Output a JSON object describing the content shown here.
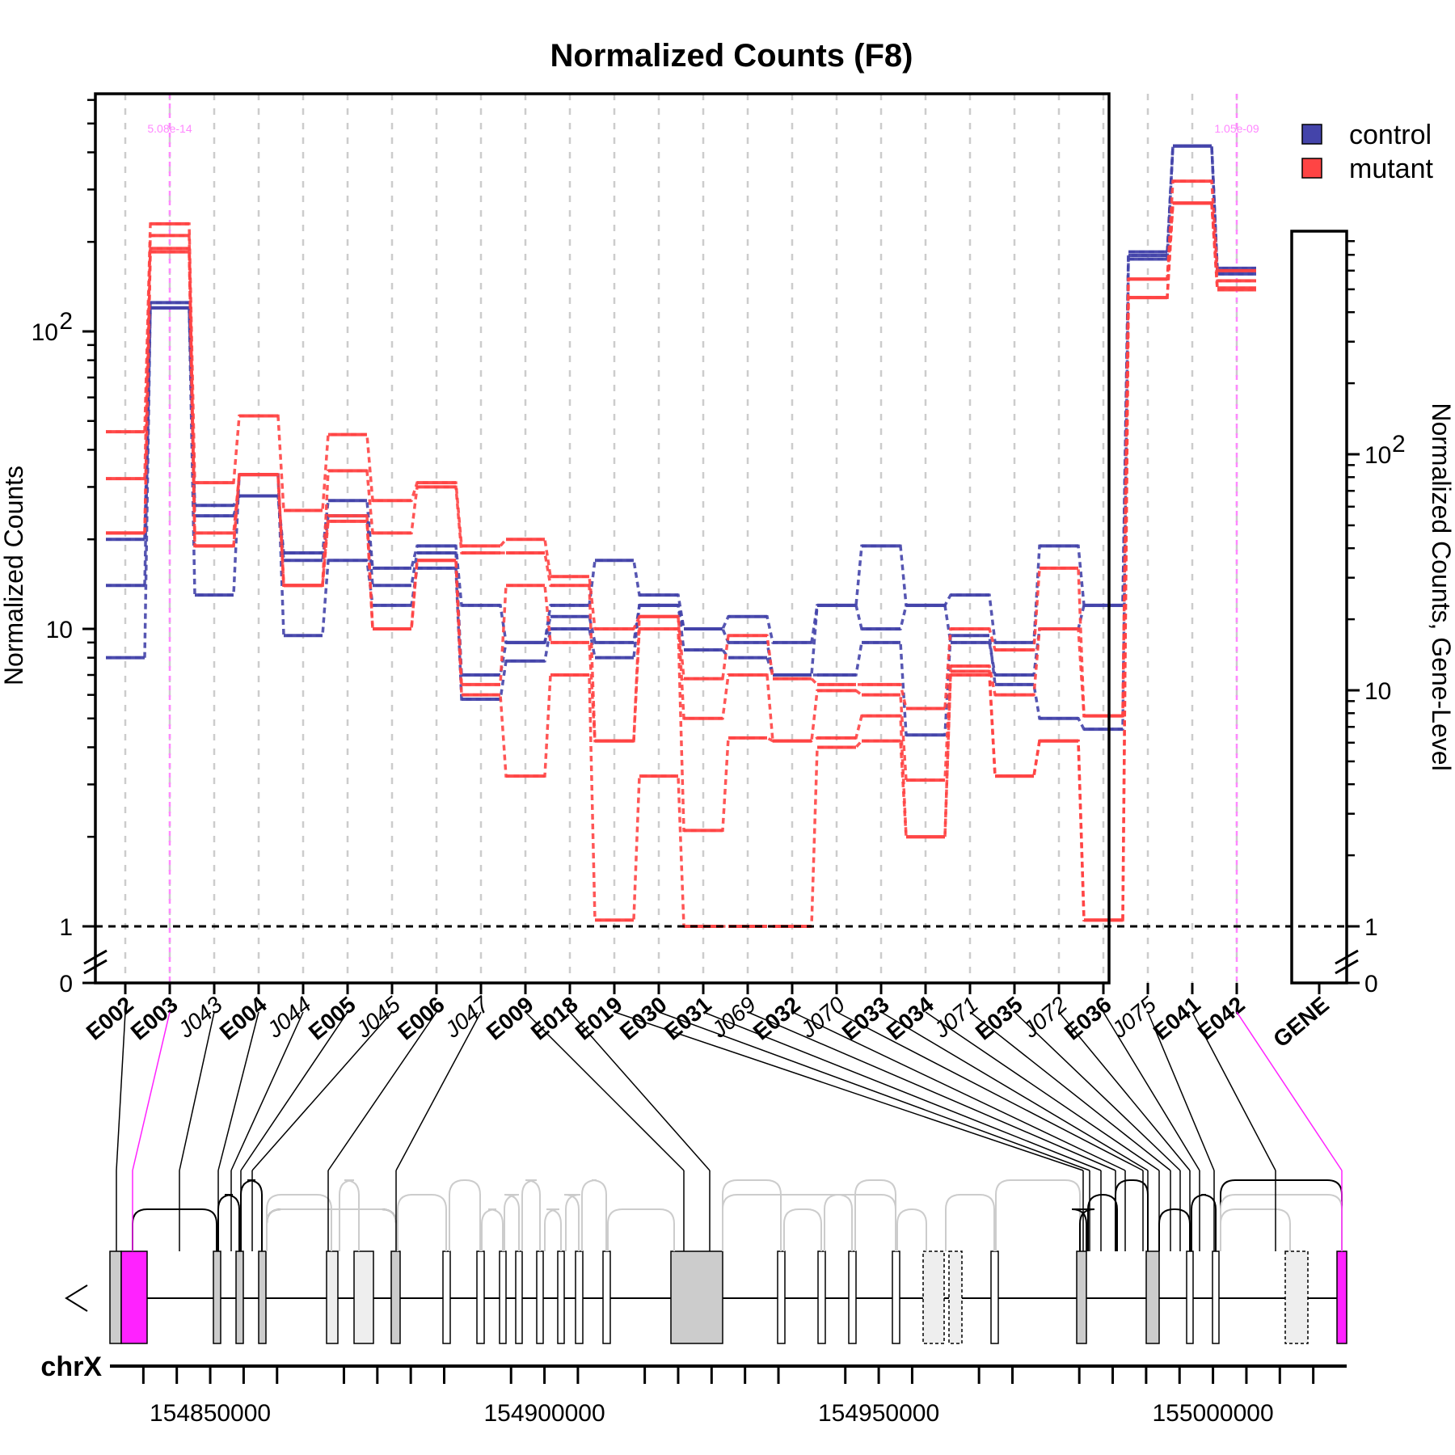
{
  "chart_data": {
    "type": "line",
    "title": "Normalized Counts (F8)",
    "ylabel": "Normalized Counts",
    "ylabel_right": "Normalized Counts, Gene-Level",
    "yscale": "log",
    "y_ticks_main": [
      "10",
      "1",
      "0"
    ],
    "y_ticks_main_pow": [
      {
        "base": "10",
        "exp": "2"
      }
    ],
    "y_ticks_gene": [
      "10",
      "1",
      "0"
    ],
    "y_ticks_gene_pow": [
      {
        "base": "10",
        "exp": "2"
      }
    ],
    "legend": {
      "placement": "top-right",
      "entries": [
        {
          "name": "control",
          "color": "#4444aa"
        },
        {
          "name": "mutant",
          "color": "#ff4444"
        }
      ]
    },
    "features": [
      {
        "id": "E002",
        "kind": "exon",
        "sig": false
      },
      {
        "id": "E003",
        "kind": "exon",
        "sig": true
      },
      {
        "id": "J043",
        "kind": "junction",
        "sig": false
      },
      {
        "id": "E004",
        "kind": "exon",
        "sig": false
      },
      {
        "id": "J044",
        "kind": "junction",
        "sig": false
      },
      {
        "id": "E005",
        "kind": "exon",
        "sig": false
      },
      {
        "id": "J045",
        "kind": "junction",
        "sig": false
      },
      {
        "id": "E006",
        "kind": "exon",
        "sig": false
      },
      {
        "id": "J047",
        "kind": "junction",
        "sig": false
      },
      {
        "id": "E009",
        "kind": "exon",
        "sig": false
      },
      {
        "id": "E018",
        "kind": "exon",
        "sig": false
      },
      {
        "id": "E019",
        "kind": "exon",
        "sig": false
      },
      {
        "id": "E030",
        "kind": "exon",
        "sig": false
      },
      {
        "id": "E031",
        "kind": "exon",
        "sig": false
      },
      {
        "id": "J069",
        "kind": "junction",
        "sig": false
      },
      {
        "id": "E032",
        "kind": "exon",
        "sig": false
      },
      {
        "id": "J070",
        "kind": "junction",
        "sig": false
      },
      {
        "id": "E033",
        "kind": "exon",
        "sig": false
      },
      {
        "id": "E034",
        "kind": "exon",
        "sig": false
      },
      {
        "id": "J071",
        "kind": "junction",
        "sig": false
      },
      {
        "id": "E035",
        "kind": "exon",
        "sig": false
      },
      {
        "id": "J072",
        "kind": "junction",
        "sig": false
      },
      {
        "id": "E036",
        "kind": "exon",
        "sig": false
      },
      {
        "id": "J075",
        "kind": "junction",
        "sig": false
      },
      {
        "id": "E041",
        "kind": "exon",
        "sig": false
      },
      {
        "id": "E042",
        "kind": "exon",
        "sig": true
      }
    ],
    "gene_label": "GENE",
    "pvalues": [
      {
        "feature": "E003",
        "text": "5.08e-14"
      },
      {
        "feature": "E042",
        "text": "1.05e-09"
      }
    ],
    "series": [
      {
        "group": "control",
        "values": [
          20,
          125,
          26,
          28,
          18,
          27,
          16,
          19,
          12,
          9,
          12,
          17,
          13,
          10,
          11,
          9,
          12,
          19,
          12,
          13,
          9,
          19,
          12,
          185,
          420,
          163
        ]
      },
      {
        "group": "control",
        "values": [
          14,
          120,
          24,
          28,
          17,
          24,
          14,
          18,
          7,
          9,
          11,
          9,
          12,
          10,
          9,
          7,
          12,
          10,
          12,
          9,
          7,
          10,
          12,
          180,
          420,
          160
        ]
      },
      {
        "group": "control",
        "values": [
          8,
          120,
          13,
          33,
          9.5,
          17,
          12,
          16,
          5.8,
          7.8,
          10,
          8,
          12,
          8.5,
          8,
          7,
          7,
          9,
          4.4,
          9.5,
          6.5,
          5,
          4.6,
          175,
          420,
          156
        ]
      },
      {
        "group": "mutant",
        "values": [
          46,
          230,
          31,
          52,
          25,
          45,
          27,
          31,
          19,
          20,
          15,
          10,
          11,
          6.8,
          9.5,
          6.8,
          6.5,
          6.5,
          5.4,
          10,
          8.5,
          16,
          5.1,
          150,
          320,
          160
        ]
      },
      {
        "group": "mutant",
        "values": [
          32,
          210,
          21,
          33,
          14,
          34,
          21,
          30,
          18,
          18,
          14,
          4.2,
          11,
          5,
          7,
          4.2,
          6.2,
          6,
          3.1,
          7.5,
          6,
          10,
          5.1,
          150,
          270,
          148
        ]
      },
      {
        "group": "mutant",
        "values": [
          21,
          190,
          19,
          33,
          14,
          24,
          10,
          17,
          6.5,
          14,
          9,
          4.2,
          10,
          2.1,
          4.3,
          4.2,
          4.3,
          5.1,
          2,
          7.2,
          3.2,
          4.2,
          1.05,
          130,
          270,
          140
        ]
      },
      {
        "group": "mutant",
        "values": [
          21,
          185,
          19,
          33,
          14,
          23,
          10,
          17,
          6,
          3.2,
          7,
          1.05,
          3.2,
          1.0,
          1.0,
          1.0,
          4.0,
          4.2,
          2,
          7,
          3.2,
          4.2,
          1.05,
          130,
          270,
          138
        ]
      }
    ],
    "chromosome": "chrX",
    "genomic_ticks": [
      "154850000",
      "154900000",
      "154950000",
      "155000000"
    ]
  }
}
